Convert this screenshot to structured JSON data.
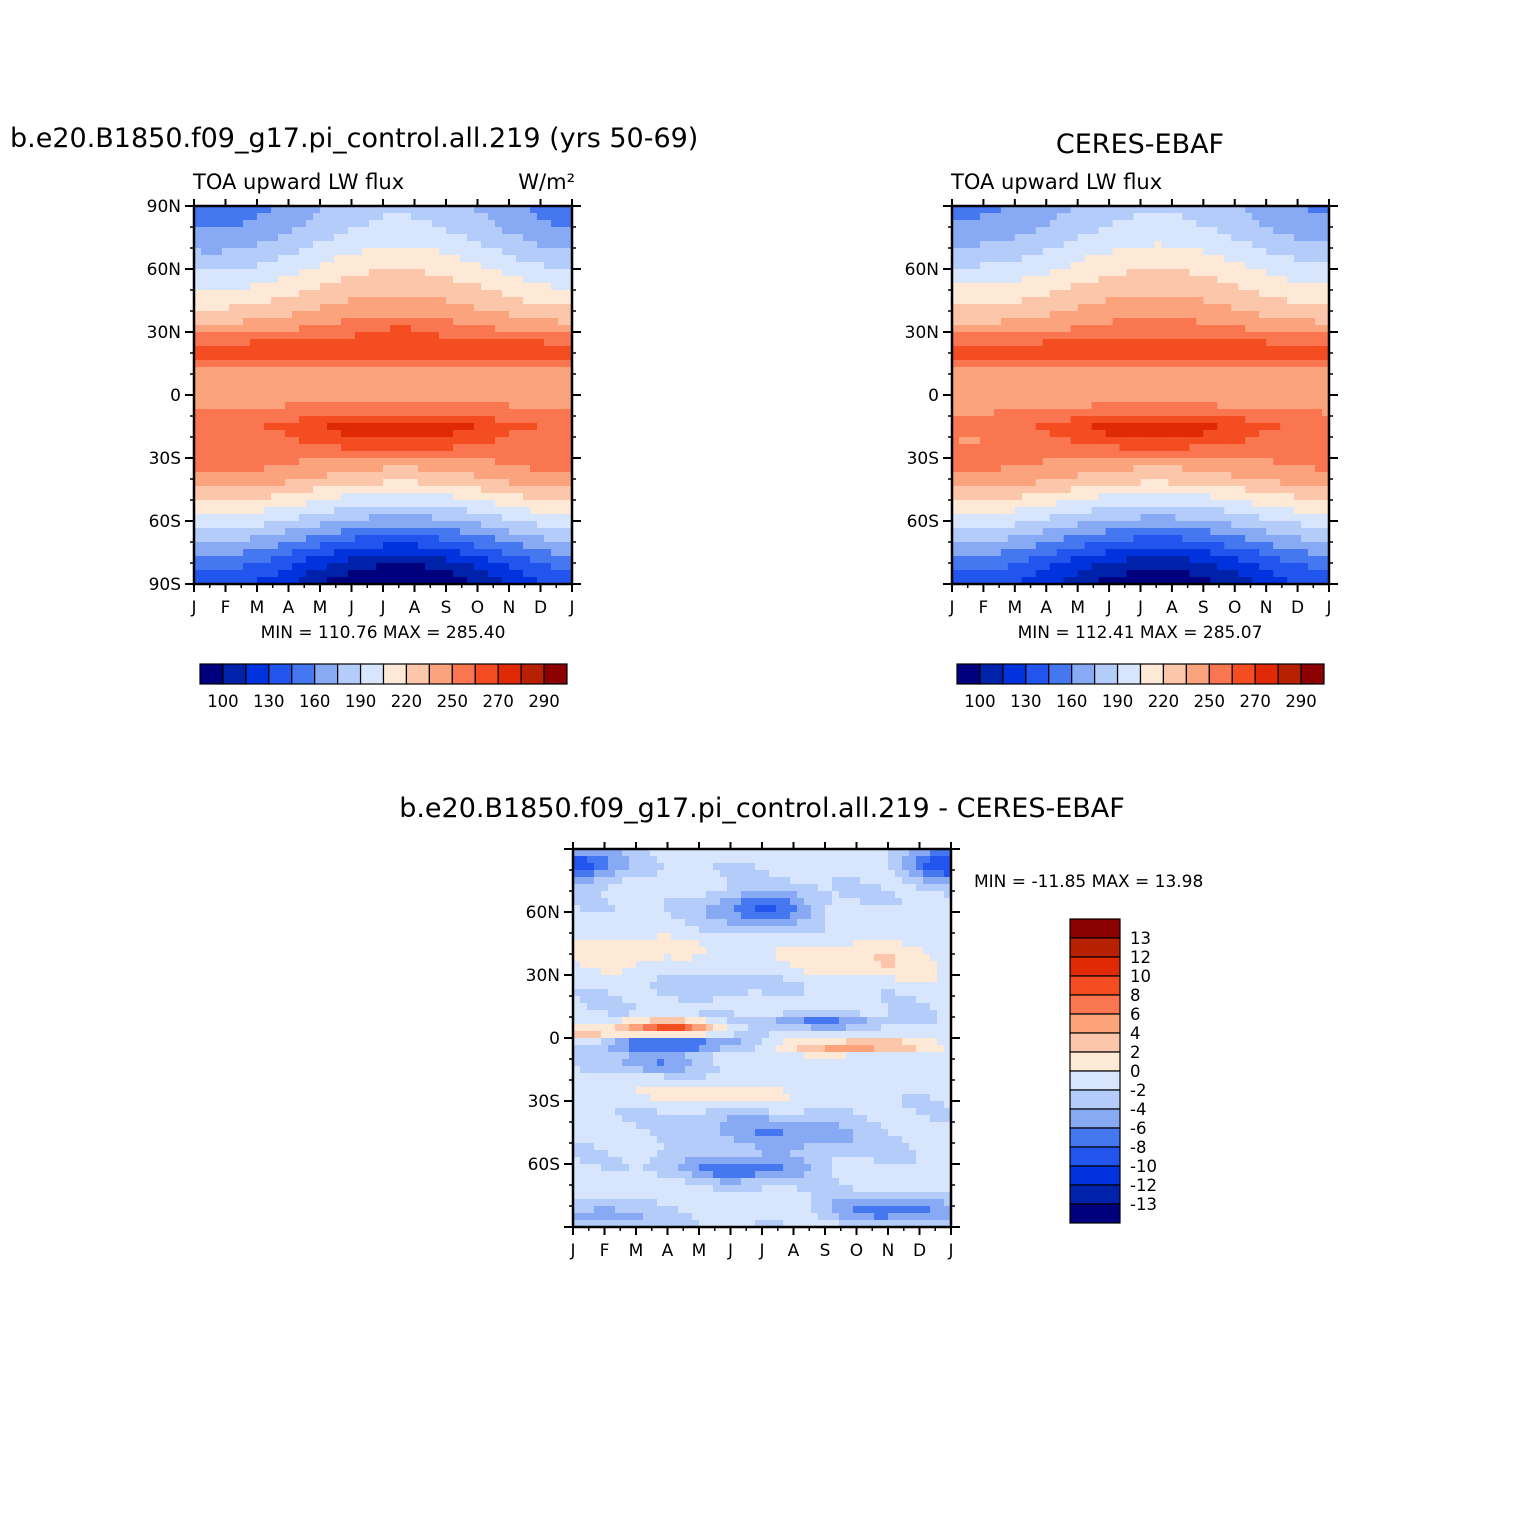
{
  "chart_data": [
    {
      "type": "heatmap",
      "title": "b.e20.B1850.f09_g17.pi_control.all.219 (yrs 50-69)",
      "subtitle_left": "TOA upward LW flux",
      "units": "W/m²",
      "x_categories": [
        "J",
        "F",
        "M",
        "A",
        "M",
        "J",
        "J",
        "A",
        "S",
        "O",
        "N",
        "D",
        "J"
      ],
      "y_ticks": [
        "90N",
        "60N",
        "30N",
        "0",
        "30S",
        "60S",
        "90S"
      ],
      "ylim": [
        -90,
        90
      ],
      "min": "110.76",
      "max": "285.40",
      "stats_text": "MIN =  110.76  MAX =  285.40",
      "colorbar_labels": [
        "100",
        "130",
        "160",
        "190",
        "220",
        "250",
        "270",
        "290"
      ],
      "field": {
        "ann_lat": [
          -90,
          -80,
          -70,
          -60,
          -50,
          -45,
          -40,
          -30,
          -20,
          -15,
          -10,
          0,
          8,
          12,
          18,
          25,
          30,
          40,
          50,
          60,
          70,
          80,
          90
        ],
        "ann_val": [
          125,
          140,
          165,
          190,
          215,
          228,
          242,
          258,
          265,
          270,
          262,
          250,
          244,
          252,
          270,
          268,
          260,
          240,
          225,
          210,
          195,
          182,
          175
        ],
        "seasonal_amp": 18,
        "south_pole_amp": 22
      }
    },
    {
      "type": "heatmap",
      "title": "CERES-EBAF",
      "subtitle_left": "TOA upward LW flux",
      "x_categories": [
        "J",
        "F",
        "M",
        "A",
        "M",
        "J",
        "J",
        "A",
        "S",
        "O",
        "N",
        "D",
        "J"
      ],
      "y_ticks": [
        "",
        "60N",
        "30N",
        "0",
        "30S",
        "60S",
        ""
      ],
      "ylim": [
        -90,
        90
      ],
      "min": "112.41",
      "max": "285.07",
      "stats_text": "MIN =  112.41  MAX =  285.07",
      "colorbar_labels": [
        "100",
        "130",
        "160",
        "190",
        "220",
        "250",
        "270",
        "290"
      ],
      "field": {
        "ann_lat": [
          -90,
          -80,
          -70,
          -60,
          -50,
          -45,
          -40,
          -30,
          -20,
          -15,
          -10,
          0,
          8,
          12,
          18,
          25,
          30,
          40,
          50,
          60,
          70,
          80,
          90
        ],
        "ann_val": [
          128,
          142,
          166,
          190,
          214,
          227,
          241,
          256,
          264,
          268,
          261,
          248,
          243,
          251,
          268,
          266,
          258,
          240,
          226,
          212,
          198,
          185,
          178
        ],
        "seasonal_amp": 16,
        "south_pole_amp": 20
      }
    },
    {
      "type": "heatmap",
      "title": "b.e20.B1850.f09_g17.pi_control.all.219  -  CERES-EBAF",
      "x_categories": [
        "J",
        "F",
        "M",
        "A",
        "M",
        "J",
        "J",
        "A",
        "S",
        "O",
        "N",
        "D",
        "J"
      ],
      "y_ticks": [
        "",
        "60N",
        "30N",
        "0",
        "30S",
        "60S",
        ""
      ],
      "ylim": [
        -90,
        90
      ],
      "min": "-11.85",
      "max": "13.98",
      "stats_text": "MIN = -11.85  MAX =   13.98",
      "colorbar_labels": [
        "13",
        "12",
        "10",
        "8",
        "6",
        "4",
        "2",
        "0",
        "-2",
        "-4",
        "-6",
        "-8",
        "-10",
        "-12",
        "-13"
      ],
      "field": {
        "features": [
          {
            "lat": 82,
            "mon": 0.2,
            "amp": -8,
            "slat": 8,
            "smon": 1.3
          },
          {
            "lat": 82,
            "mon": 11.8,
            "amp": -8,
            "slat": 8,
            "smon": 1.3
          },
          {
            "lat": 62,
            "mon": 6.0,
            "amp": -7,
            "slat": 8,
            "smon": 1.6
          },
          {
            "lat": 40,
            "mon": 1.5,
            "amp": 3,
            "slat": 8,
            "smon": 2.5
          },
          {
            "lat": 38,
            "mon": 9.5,
            "amp": 3.5,
            "slat": 10,
            "smon": 2.5
          },
          {
            "lat": 24,
            "mon": 4.0,
            "amp": -2.5,
            "slat": 5,
            "smon": 2.0
          },
          {
            "lat": 5,
            "mon": 3.0,
            "amp": 10,
            "slat": 3.5,
            "smon": 1.6
          },
          {
            "lat": 8,
            "mon": 8.0,
            "amp": -5,
            "slat": 3.5,
            "smon": 2.2
          },
          {
            "lat": 1,
            "mon": 0.2,
            "amp": 4,
            "slat": 3,
            "smon": 1.0
          },
          {
            "lat": -3,
            "mon": 3.2,
            "amp": -8,
            "slat": 3.5,
            "smon": 2.2
          },
          {
            "lat": -4,
            "mon": 9.0,
            "amp": 7,
            "slat": 3.5,
            "smon": 2.5
          },
          {
            "lat": -12,
            "mon": 2.5,
            "amp": -4,
            "slat": 5,
            "smon": 1.5
          },
          {
            "lat": -27,
            "mon": 5.0,
            "amp": 2.5,
            "slat": 6,
            "smon": 3.5
          },
          {
            "lat": -45,
            "mon": 6.5,
            "amp": -4,
            "slat": 10,
            "smon": 3.0
          },
          {
            "lat": -62,
            "mon": 5.5,
            "amp": -6,
            "slat": 6,
            "smon": 2.0
          },
          {
            "lat": -82,
            "mon": 10.0,
            "amp": -6,
            "slat": 6,
            "smon": 2.0
          },
          {
            "lat": -85,
            "mon": 1.0,
            "amp": -4,
            "slat": 5,
            "smon": 1.5
          }
        ],
        "base": -1.5
      }
    }
  ],
  "colors": {
    "abs_palette": [
      "#00007f",
      "#0022aa",
      "#0033dd",
      "#2255ee",
      "#4477f0",
      "#88aaf5",
      "#b3ccfa",
      "#d7e6fc",
      "#fde9d6",
      "#fcc6aa",
      "#fbA37c",
      "#f97650",
      "#f44d22",
      "#e02a05",
      "#b82002",
      "#8b0000"
    ],
    "diff_palette": [
      "#8b0000",
      "#b82002",
      "#e02a05",
      "#f44d22",
      "#f97650",
      "#fca37c",
      "#fcc6aa",
      "#fde9d6",
      "#d7e6fc",
      "#b3ccfa",
      "#88aaf5",
      "#4477f0",
      "#2255ee",
      "#0033dd",
      "#0022aa",
      "#00007f"
    ]
  }
}
